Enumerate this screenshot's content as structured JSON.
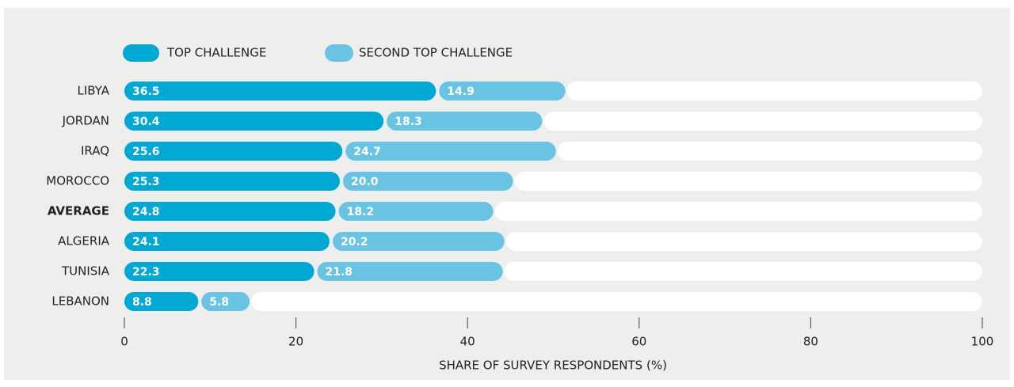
{
  "chart_data": {
    "type": "stacked-bar-horizontal",
    "categories": [
      "LIBYA",
      "JORDAN",
      "IRAQ",
      "MOROCCO",
      "AVERAGE",
      "ALGERIA",
      "TUNISIA",
      "LEBANON"
    ],
    "bold_category_index": 4,
    "series": [
      {
        "name": "TOP CHALLENGE",
        "color": "#00a8d3",
        "values": [
          36.5,
          30.4,
          25.6,
          25.3,
          24.8,
          24.1,
          22.3,
          8.8
        ],
        "value_labels": [
          "36.5",
          "30.4",
          "25.6",
          "25.3",
          "24.8",
          "24.1",
          "22.3",
          "8.8"
        ]
      },
      {
        "name": "SECOND TOP CHALLENGE",
        "color": "#69c3e3",
        "values": [
          14.9,
          18.3,
          24.7,
          20.0,
          18.2,
          20.2,
          21.8,
          5.8
        ],
        "value_labels": [
          "14.9",
          "18.3",
          "24.7",
          "20.0",
          "18.2",
          "20.2",
          "21.8",
          "5.8"
        ]
      }
    ],
    "xlabel": "SHARE OF SURVEY RESPONDENTS (%)",
    "xlim": [
      0,
      100
    ],
    "xticks": [
      0,
      20,
      40,
      60,
      80,
      100
    ]
  }
}
